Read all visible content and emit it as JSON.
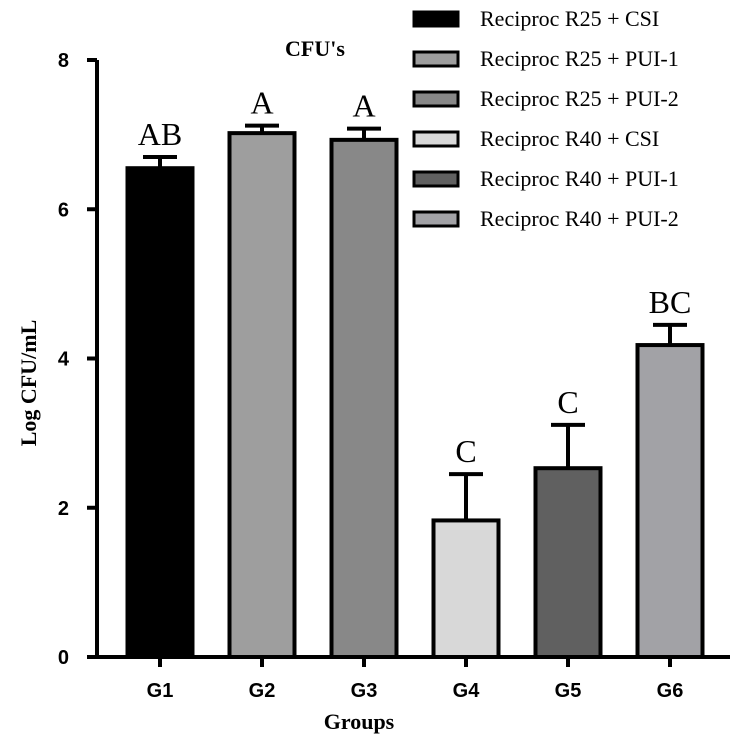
{
  "chart_data": {
    "type": "bar",
    "title": "CFU's",
    "xlabel": "Groups",
    "ylabel": "Log CFU/mL",
    "ylim": [
      0,
      8
    ],
    "yticks": [
      0,
      2,
      4,
      6,
      8
    ],
    "categories": [
      "G1",
      "G2",
      "G3",
      "G4",
      "G5",
      "G6"
    ],
    "values": [
      6.55,
      7.02,
      6.93,
      1.83,
      2.53,
      4.18
    ],
    "errors": [
      0.15,
      0.1,
      0.15,
      0.62,
      0.58,
      0.27
    ],
    "significance": [
      "AB",
      "A",
      "A",
      "C",
      "C",
      "BC"
    ],
    "colors": [
      "#000000",
      "#9e9e9e",
      "#888888",
      "#d8d8d8",
      "#606060",
      "#a2a2a6"
    ],
    "legend": {
      "placement": "top-right",
      "entries": [
        "Reciproc R25 + CSI",
        "Reciproc R25 + PUI-1",
        "Reciproc R25 + PUI-2",
        "Reciproc R40 + CSI",
        "Reciproc R40 + PUI-1",
        "Reciproc R40 + PUI-2"
      ]
    },
    "grid": false
  }
}
